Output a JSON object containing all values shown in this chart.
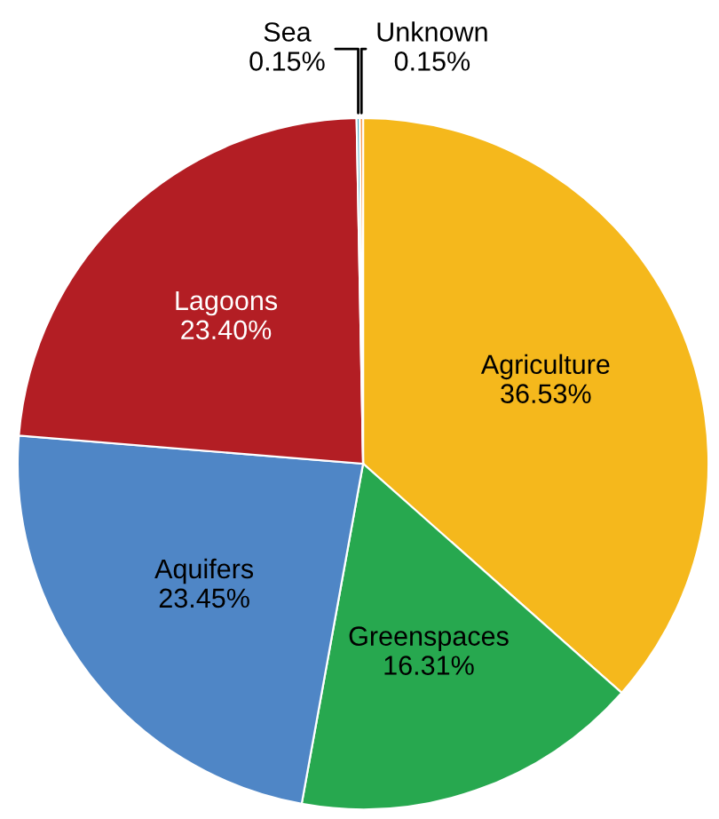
{
  "chart_data": {
    "type": "pie",
    "categories": [
      "Agriculture",
      "Greenspaces",
      "Aquifers",
      "Lagoons",
      "Sea",
      "Unknown"
    ],
    "values": [
      36.53,
      16.31,
      23.45,
      23.4,
      0.15,
      0.15
    ],
    "colors": [
      "#f5b81c",
      "#27a84f",
      "#4f86c6",
      "#b31e24",
      "#4bacc6",
      "#f79646"
    ],
    "value_labels": [
      "36.53%",
      "16.31%",
      "23.45%",
      "23.40%",
      "0.15%",
      "0.15%"
    ],
    "legend": false
  }
}
